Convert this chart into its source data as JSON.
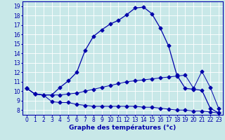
{
  "bg_color": "#c8e8e8",
  "grid_color": "#ffffff",
  "line_color": "#0000aa",
  "marker": "D",
  "markersize": 2.5,
  "xlabel": "Graphe des températures (°c)",
  "xlim": [
    -0.5,
    23.5
  ],
  "ylim": [
    7.5,
    19.5
  ],
  "yticks": [
    8,
    9,
    10,
    11,
    12,
    13,
    14,
    15,
    16,
    17,
    18,
    19
  ],
  "xticks": [
    0,
    1,
    2,
    3,
    4,
    5,
    6,
    7,
    8,
    9,
    10,
    11,
    12,
    13,
    14,
    15,
    16,
    17,
    18,
    19,
    20,
    21,
    22,
    23
  ],
  "curve1_x": [
    0,
    1,
    2,
    3,
    4,
    5,
    6,
    7,
    8,
    9,
    10,
    11,
    12,
    13,
    14,
    15,
    16,
    17,
    18,
    19,
    20,
    21,
    22,
    23
  ],
  "curve1_y": [
    10.3,
    9.7,
    9.6,
    9.6,
    10.4,
    11.1,
    12.0,
    14.3,
    15.8,
    16.5,
    17.1,
    17.5,
    18.1,
    18.8,
    18.9,
    18.2,
    16.7,
    14.8,
    11.7,
    10.3,
    10.2,
    10.1,
    8.2,
    7.7
  ],
  "curve2_x": [
    0,
    1,
    2,
    3,
    4,
    5,
    6,
    7,
    8,
    9,
    10,
    11,
    12,
    13,
    14,
    15,
    16,
    17,
    18,
    19,
    20,
    21,
    22,
    23
  ],
  "curve2_y": [
    10.3,
    9.7,
    9.6,
    9.6,
    9.6,
    9.7,
    9.8,
    10.0,
    10.2,
    10.4,
    10.6,
    10.8,
    11.0,
    11.1,
    11.2,
    11.3,
    11.4,
    11.5,
    11.6,
    11.7,
    10.3,
    12.1,
    10.4,
    8.2
  ],
  "curve3_x": [
    0,
    1,
    2,
    3,
    4,
    5,
    6,
    7,
    8,
    9,
    10,
    11,
    12,
    13,
    14,
    15,
    16,
    17,
    18,
    19,
    20,
    21,
    22,
    23
  ],
  "curve3_y": [
    10.3,
    9.7,
    9.6,
    8.9,
    8.8,
    8.8,
    8.6,
    8.5,
    8.4,
    8.4,
    8.4,
    8.4,
    8.4,
    8.4,
    8.3,
    8.3,
    8.2,
    8.1,
    8.0,
    8.0,
    7.9,
    7.9,
    7.8,
    7.7
  ],
  "title_fontsize": 6.5,
  "axis_fontsize": 5.5
}
